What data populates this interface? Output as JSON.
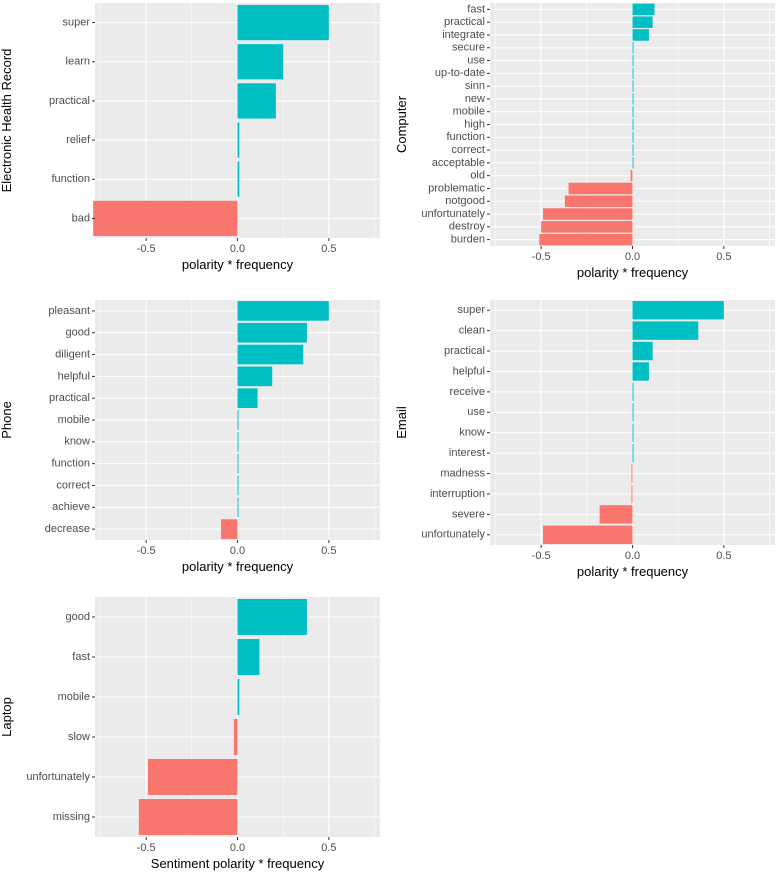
{
  "colors": {
    "panel_background": "#EBEBEB",
    "gridline": "#FFFFFF",
    "positive": "#00BFC4",
    "negative": "#F8766D",
    "tick_text": "#4D4D4D",
    "axis_text": "#000000"
  },
  "chart_data": [
    {
      "type": "bar",
      "orientation": "horizontal",
      "ylabel": "Electronic Health Record",
      "xlabel": "polarity * frequency",
      "xlim": [
        -0.78,
        0.78
      ],
      "xticks": [
        "-0.5",
        "0.0",
        "0.5"
      ],
      "categories": [
        "super",
        "learn",
        "practical",
        "relief",
        "function",
        "bad"
      ],
      "values": [
        0.5,
        0.25,
        0.21,
        0.01,
        0.01,
        -0.79
      ]
    },
    {
      "type": "bar",
      "orientation": "horizontal",
      "ylabel": "Computer",
      "xlabel": "polarity * frequency",
      "xlim": [
        -0.78,
        0.78
      ],
      "xticks": [
        "-0.5",
        "0.0",
        "0.5"
      ],
      "categories": [
        "fast",
        "practical",
        "integrate",
        "secure",
        "use",
        "up-to-date",
        "sinn",
        "new",
        "mobile",
        "high",
        "function",
        "correct",
        "acceptable",
        "old",
        "problematic",
        "notgood",
        "unfortunately",
        "destroy",
        "burden"
      ],
      "values": [
        0.12,
        0.11,
        0.09,
        0.005,
        0.005,
        0.005,
        0.005,
        0.005,
        0.005,
        0.005,
        0.005,
        0.005,
        0.005,
        -0.01,
        -0.35,
        -0.37,
        -0.49,
        -0.5,
        -0.51
      ]
    },
    {
      "type": "bar",
      "orientation": "horizontal",
      "ylabel": "Phone",
      "xlabel": "polarity * frequency",
      "xlim": [
        -0.78,
        0.78
      ],
      "xticks": [
        "-0.5",
        "0.0",
        "0.5"
      ],
      "categories": [
        "pleasant",
        "good",
        "diligent",
        "helpful",
        "practical",
        "mobile",
        "know",
        "function",
        "correct",
        "achieve",
        "decrease"
      ],
      "values": [
        0.5,
        0.38,
        0.36,
        0.19,
        0.11,
        0.005,
        0.005,
        0.005,
        0.005,
        0.005,
        -0.09
      ]
    },
    {
      "type": "bar",
      "orientation": "horizontal",
      "ylabel": "Email",
      "xlabel": "polarity * frequency",
      "xlim": [
        -0.78,
        0.78
      ],
      "xticks": [
        "-0.5",
        "0.0",
        "0.5"
      ],
      "categories": [
        "super",
        "clean",
        "practical",
        "helpful",
        "receive",
        "use",
        "know",
        "interest",
        "madness",
        "interruption",
        "severe",
        "unfortunately"
      ],
      "values": [
        0.5,
        0.36,
        0.11,
        0.09,
        0.005,
        0.005,
        0.005,
        0.005,
        -0.005,
        -0.005,
        -0.18,
        -0.49
      ]
    },
    {
      "type": "bar",
      "orientation": "horizontal",
      "ylabel": "Laptop",
      "xlabel": "Sentiment polarity * frequency",
      "xlim": [
        -0.78,
        0.78
      ],
      "xticks": [
        "-0.5",
        "0.0",
        "0.5"
      ],
      "categories": [
        "good",
        "fast",
        "mobile",
        "slow",
        "unfortunately",
        "missing"
      ],
      "values": [
        0.38,
        0.12,
        0.01,
        -0.02,
        -0.49,
        -0.54
      ]
    }
  ]
}
